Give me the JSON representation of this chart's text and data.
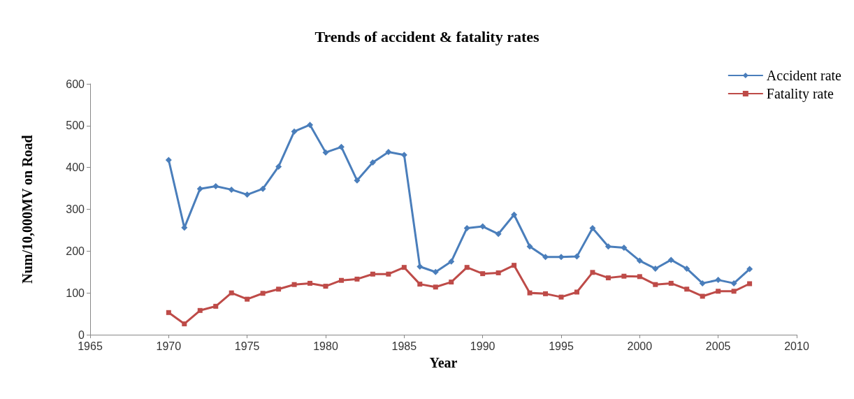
{
  "chart_data": {
    "type": "line",
    "title": "Trends of accident & fatality rates",
    "xlabel": "Year",
    "ylabel": "Num/10,000MV on Road",
    "x": [
      1970,
      1971,
      1972,
      1973,
      1974,
      1975,
      1976,
      1977,
      1978,
      1979,
      1980,
      1981,
      1982,
      1983,
      1984,
      1985,
      1986,
      1987,
      1988,
      1989,
      1990,
      1991,
      1992,
      1993,
      1994,
      1995,
      1996,
      1997,
      1998,
      1999,
      2000,
      2001,
      2002,
      2003,
      2004,
      2005,
      2006,
      2007
    ],
    "series": [
      {
        "name": "Accident rate",
        "color": "#4a7ebb",
        "marker": "diamond",
        "values": [
          418,
          256,
          349,
          355,
          347,
          335,
          349,
          402,
          486,
          502,
          436,
          449,
          369,
          412,
          437,
          430,
          163,
          150,
          175,
          255,
          259,
          241,
          287,
          211,
          186,
          186,
          187,
          255,
          211,
          208,
          177,
          158,
          179,
          158,
          123,
          131,
          123,
          157
        ]
      },
      {
        "name": "Fatality rate",
        "color": "#be4b48",
        "marker": "square",
        "values": [
          53,
          26,
          58,
          68,
          100,
          85,
          99,
          109,
          120,
          123,
          116,
          130,
          133,
          145,
          145,
          161,
          121,
          114,
          126,
          161,
          146,
          148,
          166,
          100,
          98,
          90,
          102,
          149,
          136,
          140,
          139,
          120,
          123,
          109,
          92,
          104,
          104,
          122
        ]
      }
    ],
    "xlim": [
      1965,
      2010
    ],
    "xticks": [
      1965,
      1970,
      1975,
      1980,
      1985,
      1990,
      1995,
      2000,
      2005,
      2010
    ],
    "ylim": [
      0,
      600
    ],
    "yticks": [
      0,
      100,
      200,
      300,
      400,
      500,
      600
    ],
    "legend": "top right",
    "grid": false
  }
}
